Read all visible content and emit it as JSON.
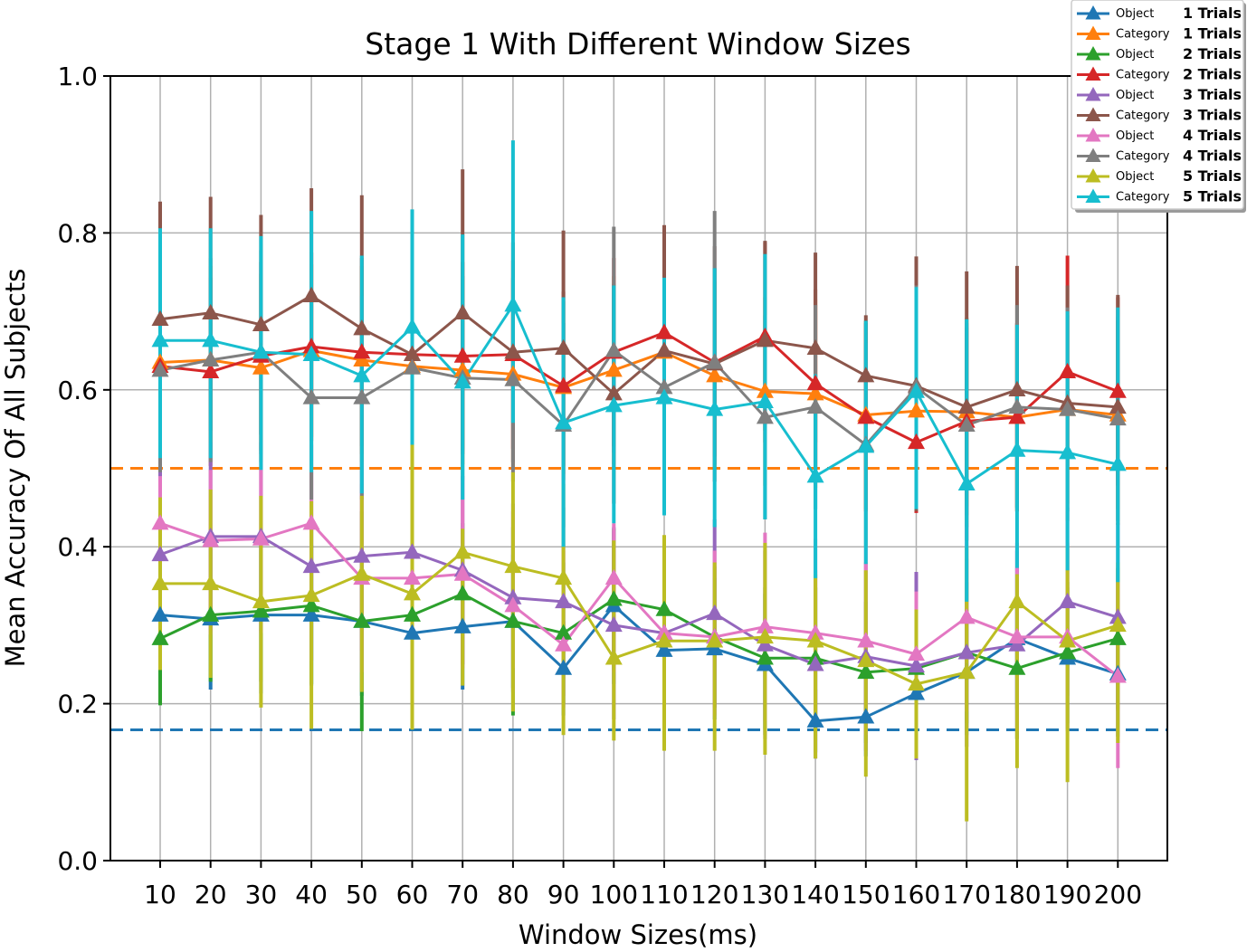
{
  "chart_data": {
    "type": "line",
    "title": "Stage 1 With Different Window Sizes",
    "xlabel": "Window Sizes(ms)",
    "ylabel": "Mean Accuracy Of All Subjects",
    "ylim": [
      0.0,
      1.0
    ],
    "yticks": [
      "0.0",
      "0.2",
      "0.4",
      "0.6",
      "0.8",
      "1.0"
    ],
    "x": [
      10,
      20,
      30,
      40,
      50,
      60,
      70,
      80,
      90,
      100,
      110,
      120,
      130,
      140,
      150,
      160,
      170,
      180,
      190,
      200
    ],
    "grid": true,
    "legend_position": "top-right",
    "reference_lines": [
      {
        "y": 0.5,
        "color": "#ff7f0e",
        "style": "dashed"
      },
      {
        "y": 0.1667,
        "color": "#1f77b4",
        "style": "dashed"
      }
    ],
    "series": [
      {
        "legend_small": "Object",
        "legend_bold": "1 Trials",
        "color": "#1f77b4",
        "values": [
          0.313,
          0.308,
          0.313,
          0.313,
          0.305,
          0.29,
          0.298,
          0.305,
          0.245,
          0.325,
          0.268,
          0.27,
          0.25,
          0.178,
          0.183,
          0.213,
          0.24,
          0.283,
          0.258,
          0.238
        ],
        "err_lo": [
          0.09,
          0.09,
          0.1,
          0.09,
          0.095,
          0.095,
          0.08,
          0.085,
          0.06,
          0.1,
          0.09,
          0.09,
          0.09,
          0.04,
          0.05,
          0.07,
          0.08,
          0.09,
          0.09,
          0.08
        ],
        "err_hi": [
          0.09,
          0.09,
          0.1,
          0.09,
          0.095,
          0.095,
          0.08,
          0.085,
          0.06,
          0.1,
          0.09,
          0.09,
          0.09,
          0.04,
          0.05,
          0.07,
          0.08,
          0.09,
          0.09,
          0.08
        ]
      },
      {
        "legend_small": "Category",
        "legend_bold": "1 Trials",
        "color": "#ff7f0e",
        "values": [
          0.635,
          0.638,
          0.628,
          0.65,
          0.638,
          0.63,
          0.625,
          0.62,
          0.603,
          0.625,
          0.648,
          0.618,
          0.598,
          0.595,
          0.568,
          0.573,
          0.572,
          0.565,
          0.575,
          0.568
        ],
        "err_lo": [
          0.12,
          0.12,
          0.12,
          0.11,
          0.12,
          0.11,
          0.12,
          0.12,
          0.11,
          0.12,
          0.11,
          0.12,
          0.12,
          0.12,
          0.12,
          0.12,
          0.12,
          0.12,
          0.12,
          0.12
        ],
        "err_hi": [
          0.12,
          0.12,
          0.12,
          0.11,
          0.12,
          0.11,
          0.12,
          0.12,
          0.11,
          0.12,
          0.11,
          0.12,
          0.12,
          0.12,
          0.12,
          0.12,
          0.12,
          0.12,
          0.12,
          0.12
        ]
      },
      {
        "legend_small": "Object",
        "legend_bold": "2 Trials",
        "color": "#2ca02c",
        "values": [
          0.283,
          0.313,
          0.318,
          0.325,
          0.305,
          0.313,
          0.34,
          0.305,
          0.29,
          0.333,
          0.32,
          0.285,
          0.258,
          0.258,
          0.24,
          0.245,
          0.265,
          0.245,
          0.265,
          0.283
        ],
        "err_lo": [
          0.085,
          0.085,
          0.09,
          0.1,
          0.14,
          0.1,
          0.09,
          0.12,
          0.09,
          0.09,
          0.09,
          0.09,
          0.09,
          0.09,
          0.09,
          0.09,
          0.09,
          0.09,
          0.09,
          0.09
        ],
        "err_hi": [
          0.085,
          0.085,
          0.09,
          0.1,
          0.14,
          0.1,
          0.09,
          0.12,
          0.09,
          0.09,
          0.09,
          0.09,
          0.09,
          0.09,
          0.09,
          0.09,
          0.09,
          0.09,
          0.09,
          0.09
        ]
      },
      {
        "legend_small": "Category",
        "legend_bold": "2 Trials",
        "color": "#d62728",
        "values": [
          0.63,
          0.623,
          0.643,
          0.655,
          0.648,
          0.645,
          0.643,
          0.645,
          0.605,
          0.648,
          0.673,
          0.635,
          0.668,
          0.608,
          0.565,
          0.533,
          0.56,
          0.565,
          0.623,
          0.598
        ],
        "err_lo": [
          0.12,
          0.12,
          0.12,
          0.12,
          0.12,
          0.12,
          0.12,
          0.12,
          0.12,
          0.12,
          0.12,
          0.12,
          0.12,
          0.12,
          0.12,
          0.09,
          0.12,
          0.12,
          0.12,
          0.12
        ],
        "err_hi": [
          0.12,
          0.12,
          0.12,
          0.12,
          0.12,
          0.12,
          0.12,
          0.12,
          0.12,
          0.12,
          0.12,
          0.12,
          0.12,
          0.12,
          0.12,
          0.12,
          0.12,
          0.12,
          0.148,
          0.12
        ]
      },
      {
        "legend_small": "Object",
        "legend_bold": "3 Trials",
        "color": "#9467bd",
        "values": [
          0.39,
          0.413,
          0.413,
          0.375,
          0.388,
          0.393,
          0.37,
          0.335,
          0.33,
          0.3,
          0.29,
          0.315,
          0.275,
          0.25,
          0.26,
          0.248,
          0.265,
          0.275,
          0.33,
          0.31
        ],
        "err_lo": [
          0.12,
          0.12,
          0.12,
          0.12,
          0.12,
          0.12,
          0.12,
          0.12,
          0.12,
          0.12,
          0.12,
          0.12,
          0.12,
          0.12,
          0.12,
          0.12,
          0.12,
          0.12,
          0.12,
          0.12
        ],
        "err_hi": [
          0.12,
          0.12,
          0.12,
          0.12,
          0.12,
          0.12,
          0.12,
          0.12,
          0.12,
          0.12,
          0.12,
          0.12,
          0.12,
          0.12,
          0.12,
          0.12,
          0.12,
          0.12,
          0.12,
          0.12
        ]
      },
      {
        "legend_small": "Category",
        "legend_bold": "3 Trials",
        "color": "#8c564b",
        "values": [
          0.69,
          0.698,
          0.683,
          0.72,
          0.678,
          0.645,
          0.698,
          0.648,
          0.653,
          0.595,
          0.65,
          0.633,
          0.663,
          0.653,
          0.618,
          0.605,
          0.578,
          0.6,
          0.583,
          0.578
        ],
        "err_lo": [
          0.15,
          0.15,
          0.14,
          0.14,
          0.17,
          0.12,
          0.18,
          0.14,
          0.15,
          0.14,
          0.16,
          0.15,
          0.13,
          0.12,
          0.12,
          0.16,
          0.17,
          0.15,
          0.15,
          0.15
        ],
        "err_hi": [
          0.15,
          0.148,
          0.14,
          0.137,
          0.17,
          0.14,
          0.183,
          0.14,
          0.15,
          0.14,
          0.16,
          0.15,
          0.127,
          0.122,
          0.077,
          0.165,
          0.173,
          0.158,
          0.15,
          0.143
        ]
      },
      {
        "legend_small": "Object",
        "legend_bold": "4 Trials",
        "color": "#e377c2",
        "values": [
          0.43,
          0.408,
          0.41,
          0.43,
          0.36,
          0.36,
          0.365,
          0.325,
          0.275,
          0.36,
          0.29,
          0.285,
          0.298,
          0.29,
          0.28,
          0.263,
          0.31,
          0.285,
          0.285,
          0.235
        ],
        "err_lo": [
          0.12,
          0.12,
          0.12,
          0.12,
          0.12,
          0.12,
          0.12,
          0.08,
          0.08,
          0.12,
          0.12,
          0.1,
          0.12,
          0.12,
          0.12,
          0.12,
          0.12,
          0.12,
          0.12,
          0.117
        ],
        "err_hi": [
          0.06,
          0.09,
          0.09,
          0.1,
          0.12,
          0.12,
          0.12,
          0.12,
          0.12,
          0.07,
          0.12,
          0.11,
          0.12,
          0.12,
          0.12,
          0.08,
          0.12,
          0.12,
          0.12,
          0.12
        ]
      },
      {
        "legend_small": "Category",
        "legend_bold": "4 Trials",
        "color": "#7f7f7f",
        "values": [
          0.625,
          0.638,
          0.648,
          0.59,
          0.59,
          0.628,
          0.615,
          0.613,
          0.555,
          0.65,
          0.603,
          0.635,
          0.565,
          0.578,
          0.53,
          0.603,
          0.555,
          0.578,
          0.575,
          0.563
        ],
        "err_lo": [
          0.13,
          0.13,
          0.13,
          0.13,
          0.13,
          0.1,
          0.13,
          0.13,
          0.13,
          0.13,
          0.13,
          0.13,
          0.13,
          0.13,
          0.13,
          0.13,
          0.13,
          0.13,
          0.13,
          0.13
        ],
        "err_hi": [
          0.13,
          0.13,
          0.13,
          0.13,
          0.13,
          0.13,
          0.13,
          0.13,
          0.13,
          0.158,
          0.13,
          0.193,
          0.13,
          0.13,
          0.13,
          0.13,
          0.13,
          0.13,
          0.13,
          0.13
        ]
      },
      {
        "legend_small": "Object",
        "legend_bold": "5 Trials",
        "color": "#bcbd22",
        "values": [
          0.353,
          0.353,
          0.33,
          0.338,
          0.365,
          0.34,
          0.393,
          0.375,
          0.36,
          0.258,
          0.28,
          0.28,
          0.285,
          0.28,
          0.255,
          0.225,
          0.24,
          0.33,
          0.28,
          0.3
        ],
        "err_lo": [
          0.11,
          0.12,
          0.135,
          0.17,
          0.15,
          0.173,
          0.17,
          0.185,
          0.2,
          0.105,
          0.14,
          0.14,
          0.15,
          0.15,
          0.148,
          0.095,
          0.19,
          0.212,
          0.18,
          0.15
        ],
        "err_hi": [
          0.11,
          0.12,
          0.135,
          0.12,
          0.1,
          0.19,
          0.03,
          0.12,
          0.12,
          0.15,
          0.135,
          0.1,
          0.12,
          0.085,
          0.115,
          0.095,
          0.16,
          0.035,
          0.12,
          0.08
        ]
      },
      {
        "legend_small": "Category",
        "legend_bold": "5 Trials",
        "color": "#17becf",
        "values": [
          0.663,
          0.663,
          0.648,
          0.645,
          0.618,
          0.68,
          0.61,
          0.708,
          0.558,
          0.58,
          0.59,
          0.575,
          0.585,
          0.49,
          0.528,
          0.598,
          0.48,
          0.523,
          0.52,
          0.505
        ],
        "err_lo": [
          0.15,
          0.15,
          0.15,
          0.15,
          0.15,
          0.15,
          0.15,
          0.15,
          0.158,
          0.15,
          0.15,
          0.15,
          0.15,
          0.13,
          0.15,
          0.15,
          0.15,
          0.15,
          0.15,
          0.15
        ],
        "err_hi": [
          0.143,
          0.143,
          0.148,
          0.183,
          0.153,
          0.15,
          0.188,
          0.21,
          0.16,
          0.153,
          0.153,
          0.18,
          0.188,
          0.13,
          0.16,
          0.133,
          0.21,
          0.16,
          0.18,
          0.2
        ]
      }
    ]
  }
}
